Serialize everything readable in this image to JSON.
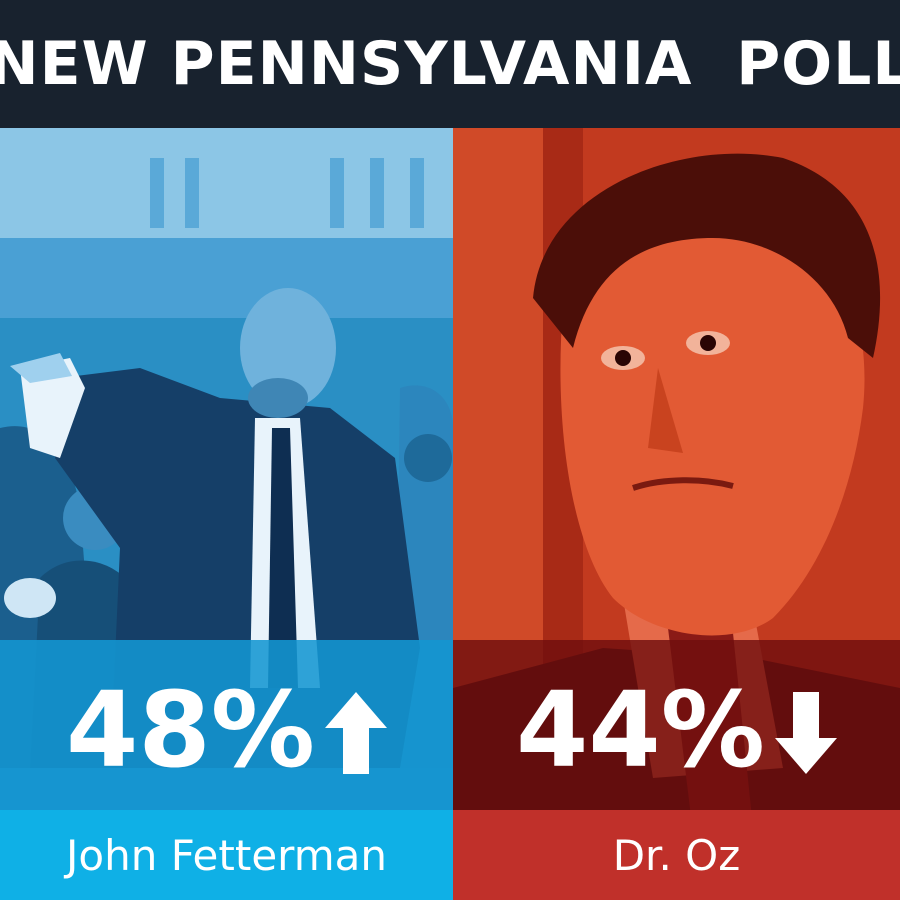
{
  "header": {
    "title": "NEW PENNSYLVANIA  POLL"
  },
  "candidates": [
    {
      "name": "John Fetterman",
      "percent": "48%",
      "trend": "up",
      "color": "#0fb0e6"
    },
    {
      "name": "Dr. Oz",
      "percent": "44%",
      "trend": "down",
      "color": "#c0302a"
    }
  ],
  "icons": {
    "up": "arrow-up-icon",
    "down": "arrow-down-icon"
  }
}
